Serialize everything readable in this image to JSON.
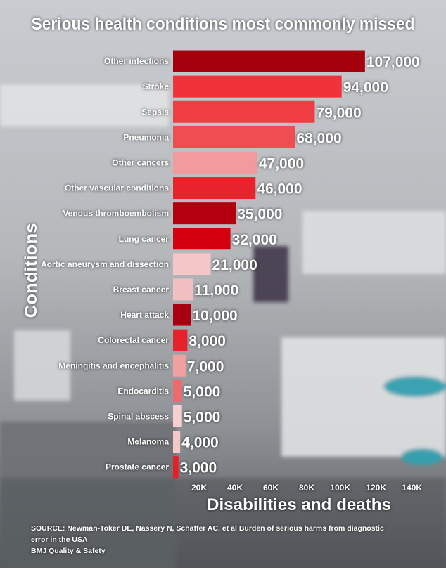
{
  "chart_data": {
    "type": "barh",
    "title": "Serious health conditions most commonly missed",
    "categories": [
      "Other infections",
      "Stroke",
      "Sepsis",
      "Pneumonia",
      "Other cancers",
      "Other vascular conditions",
      "Venous thromboembolism",
      "Lung cancer",
      "Aortic aneurysm and dissection",
      "Breast cancer",
      "Heart attack",
      "Colorectal cancer",
      "Meningitis and encephalitis",
      "Endocarditis",
      "Spinal abscess",
      "Melanoma",
      "Prostate cancer"
    ],
    "values": [
      107000,
      94000,
      79000,
      68000,
      47000,
      46000,
      35000,
      32000,
      21000,
      11000,
      10000,
      8000,
      7000,
      5000,
      5000,
      4000,
      3000
    ],
    "value_labels": [
      "107,000",
      "94,000",
      "79,000",
      "68,000",
      "47,000",
      "46,000",
      "35,000",
      "32,000",
      "21,000",
      "11,000",
      "10,000",
      "8,000",
      "7,000",
      "5,000",
      "5,000",
      "4,000",
      "3,000"
    ],
    "colors": [
      "#a5000e",
      "#f0323a",
      "#ee3e44",
      "#ef4d50",
      "#f29a9c",
      "#e8232c",
      "#b3000f",
      "#d5000f",
      "#f4c6c6",
      "#f2c0c0",
      "#a80010",
      "#e8222a",
      "#f0a0a0",
      "#ef6a6c",
      "#f6d0d0",
      "#f3c8c8",
      "#e81e26"
    ],
    "xlim": [
      0,
      140000
    ],
    "xticks": [
      {
        "value": 20000,
        "label": "20K"
      },
      {
        "value": 40000,
        "label": "40K"
      },
      {
        "value": 60000,
        "label": "60K"
      },
      {
        "value": 80000,
        "label": "80K"
      },
      {
        "value": 100000,
        "label": "100K"
      },
      {
        "value": 120000,
        "label": "120K"
      },
      {
        "value": 140000,
        "label": "140K"
      }
    ],
    "xlabel": "Disabilities and deaths",
    "ylabel": "Conditions",
    "source": [
      "SOURCE: Newman-Toker DE, Nassery N, Schaffer AC, et al Burden of serious harms from diagnostic",
      "error in the USA",
      "BMJ Quality & Safety"
    ]
  }
}
